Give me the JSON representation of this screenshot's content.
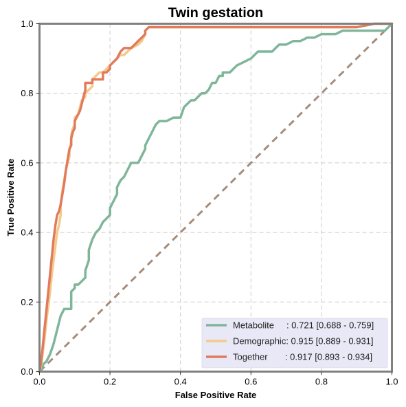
{
  "chart_data": {
    "type": "line",
    "title": "Twin gestation",
    "xlabel": "False Positive Rate",
    "ylabel": "True Positive Rate",
    "xlim": [
      0,
      1
    ],
    "ylim": [
      0,
      1
    ],
    "xticks": [
      "0.0",
      "0.2",
      "0.4",
      "0.6",
      "0.8",
      "1.0"
    ],
    "yticks": [
      "0.0",
      "0.2",
      "0.4",
      "0.6",
      "0.8",
      "1.0"
    ],
    "grid": true,
    "legend_position": "bottom-right",
    "diagonal": {
      "x": [
        0,
        1
      ],
      "y": [
        0,
        1
      ],
      "color": "#a58c7b",
      "style": "dashed"
    },
    "series": [
      {
        "name": "Metabolite",
        "legend": "Metabolite     : 0.721 [0.688 - 0.759]",
        "color": "#7fb69a",
        "points": [
          [
            0,
            0
          ],
          [
            0.005,
            0.005
          ],
          [
            0.01,
            0.02
          ],
          [
            0.02,
            0.03
          ],
          [
            0.03,
            0.05
          ],
          [
            0.04,
            0.08
          ],
          [
            0.05,
            0.12
          ],
          [
            0.06,
            0.16
          ],
          [
            0.07,
            0.18
          ],
          [
            0.08,
            0.18
          ],
          [
            0.09,
            0.18
          ],
          [
            0.09,
            0.2
          ],
          [
            0.09,
            0.23
          ],
          [
            0.1,
            0.24
          ],
          [
            0.1,
            0.25
          ],
          [
            0.11,
            0.25
          ],
          [
            0.12,
            0.26
          ],
          [
            0.13,
            0.27
          ],
          [
            0.13,
            0.29
          ],
          [
            0.14,
            0.32
          ],
          [
            0.14,
            0.35
          ],
          [
            0.15,
            0.38
          ],
          [
            0.16,
            0.4
          ],
          [
            0.17,
            0.41
          ],
          [
            0.18,
            0.43
          ],
          [
            0.19,
            0.44
          ],
          [
            0.2,
            0.45
          ],
          [
            0.2,
            0.47
          ],
          [
            0.21,
            0.49
          ],
          [
            0.22,
            0.51
          ],
          [
            0.22,
            0.53
          ],
          [
            0.23,
            0.55
          ],
          [
            0.24,
            0.56
          ],
          [
            0.25,
            0.58
          ],
          [
            0.26,
            0.6
          ],
          [
            0.27,
            0.6
          ],
          [
            0.28,
            0.6
          ],
          [
            0.29,
            0.62
          ],
          [
            0.3,
            0.64
          ],
          [
            0.3,
            0.65
          ],
          [
            0.31,
            0.67
          ],
          [
            0.32,
            0.69
          ],
          [
            0.33,
            0.71
          ],
          [
            0.34,
            0.72
          ],
          [
            0.36,
            0.72
          ],
          [
            0.38,
            0.73
          ],
          [
            0.4,
            0.73
          ],
          [
            0.41,
            0.76
          ],
          [
            0.42,
            0.77
          ],
          [
            0.43,
            0.78
          ],
          [
            0.44,
            0.78
          ],
          [
            0.45,
            0.79
          ],
          [
            0.46,
            0.8
          ],
          [
            0.47,
            0.8
          ],
          [
            0.48,
            0.81
          ],
          [
            0.49,
            0.83
          ],
          [
            0.5,
            0.83
          ],
          [
            0.51,
            0.85
          ],
          [
            0.52,
            0.85
          ],
          [
            0.52,
            0.86
          ],
          [
            0.54,
            0.86
          ],
          [
            0.55,
            0.87
          ],
          [
            0.56,
            0.88
          ],
          [
            0.58,
            0.89
          ],
          [
            0.6,
            0.9
          ],
          [
            0.61,
            0.91
          ],
          [
            0.62,
            0.92
          ],
          [
            0.64,
            0.92
          ],
          [
            0.66,
            0.92
          ],
          [
            0.67,
            0.93
          ],
          [
            0.68,
            0.94
          ],
          [
            0.7,
            0.94
          ],
          [
            0.72,
            0.95
          ],
          [
            0.74,
            0.95
          ],
          [
            0.76,
            0.96
          ],
          [
            0.78,
            0.96
          ],
          [
            0.8,
            0.97
          ],
          [
            0.82,
            0.97
          ],
          [
            0.84,
            0.97
          ],
          [
            0.86,
            0.98
          ],
          [
            0.9,
            0.98
          ],
          [
            0.95,
            0.98
          ],
          [
            0.98,
            0.98
          ],
          [
            0.99,
            0.99
          ],
          [
            1,
            1
          ]
        ]
      },
      {
        "name": "Demographic",
        "legend": "Demographic: 0.915 [0.889 - 0.931]",
        "color": "#f5ca8a",
        "points": [
          [
            0,
            0
          ],
          [
            0.005,
            0.02
          ],
          [
            0.01,
            0.06
          ],
          [
            0.015,
            0.1
          ],
          [
            0.02,
            0.15
          ],
          [
            0.025,
            0.19
          ],
          [
            0.03,
            0.23
          ],
          [
            0.035,
            0.28
          ],
          [
            0.04,
            0.32
          ],
          [
            0.045,
            0.36
          ],
          [
            0.05,
            0.4
          ],
          [
            0.055,
            0.42
          ],
          [
            0.06,
            0.45
          ],
          [
            0.06,
            0.48
          ],
          [
            0.065,
            0.52
          ],
          [
            0.07,
            0.55
          ],
          [
            0.075,
            0.58
          ],
          [
            0.08,
            0.6
          ],
          [
            0.085,
            0.62
          ],
          [
            0.085,
            0.64
          ],
          [
            0.09,
            0.66
          ],
          [
            0.09,
            0.68
          ],
          [
            0.095,
            0.7
          ],
          [
            0.1,
            0.71
          ],
          [
            0.1,
            0.73
          ],
          [
            0.11,
            0.74
          ],
          [
            0.115,
            0.76
          ],
          [
            0.12,
            0.78
          ],
          [
            0.13,
            0.79
          ],
          [
            0.13,
            0.8
          ],
          [
            0.14,
            0.81
          ],
          [
            0.15,
            0.82
          ],
          [
            0.15,
            0.84
          ],
          [
            0.16,
            0.85
          ],
          [
            0.17,
            0.86
          ],
          [
            0.18,
            0.86
          ],
          [
            0.19,
            0.87
          ],
          [
            0.2,
            0.88
          ],
          [
            0.21,
            0.89
          ],
          [
            0.22,
            0.9
          ],
          [
            0.23,
            0.91
          ],
          [
            0.24,
            0.91
          ],
          [
            0.25,
            0.92
          ],
          [
            0.26,
            0.93
          ],
          [
            0.28,
            0.94
          ],
          [
            0.29,
            0.95
          ],
          [
            0.3,
            0.97
          ],
          [
            0.3,
            0.98
          ],
          [
            0.31,
            0.99
          ],
          [
            0.5,
            0.99
          ],
          [
            0.7,
            0.99
          ],
          [
            0.85,
            0.99
          ],
          [
            0.9,
            0.99
          ],
          [
            0.95,
            1
          ],
          [
            1,
            1
          ]
        ]
      },
      {
        "name": "Together",
        "legend": "Together       : 0.917 [0.893 - 0.934]",
        "color": "#e07b5d",
        "points": [
          [
            0,
            0
          ],
          [
            0.005,
            0.03
          ],
          [
            0.01,
            0.08
          ],
          [
            0.015,
            0.13
          ],
          [
            0.02,
            0.18
          ],
          [
            0.025,
            0.23
          ],
          [
            0.03,
            0.28
          ],
          [
            0.035,
            0.33
          ],
          [
            0.04,
            0.38
          ],
          [
            0.045,
            0.42
          ],
          [
            0.05,
            0.45
          ],
          [
            0.055,
            0.46
          ],
          [
            0.06,
            0.48
          ],
          [
            0.065,
            0.51
          ],
          [
            0.07,
            0.54
          ],
          [
            0.075,
            0.58
          ],
          [
            0.08,
            0.61
          ],
          [
            0.085,
            0.64
          ],
          [
            0.09,
            0.65
          ],
          [
            0.09,
            0.67
          ],
          [
            0.095,
            0.69
          ],
          [
            0.1,
            0.7
          ],
          [
            0.1,
            0.72
          ],
          [
            0.105,
            0.73
          ],
          [
            0.11,
            0.74
          ],
          [
            0.115,
            0.75
          ],
          [
            0.12,
            0.77
          ],
          [
            0.125,
            0.79
          ],
          [
            0.13,
            0.81
          ],
          [
            0.13,
            0.83
          ],
          [
            0.14,
            0.83
          ],
          [
            0.15,
            0.83
          ],
          [
            0.15,
            0.84
          ],
          [
            0.16,
            0.84
          ],
          [
            0.18,
            0.84
          ],
          [
            0.18,
            0.86
          ],
          [
            0.19,
            0.86
          ],
          [
            0.2,
            0.87
          ],
          [
            0.2,
            0.88
          ],
          [
            0.21,
            0.89
          ],
          [
            0.22,
            0.9
          ],
          [
            0.23,
            0.92
          ],
          [
            0.24,
            0.93
          ],
          [
            0.26,
            0.93
          ],
          [
            0.27,
            0.94
          ],
          [
            0.28,
            0.95
          ],
          [
            0.29,
            0.96
          ],
          [
            0.3,
            0.97
          ],
          [
            0.3,
            0.98
          ],
          [
            0.31,
            0.99
          ],
          [
            0.5,
            0.99
          ],
          [
            0.7,
            0.99
          ],
          [
            0.85,
            0.99
          ],
          [
            0.9,
            0.99
          ],
          [
            0.95,
            1
          ],
          [
            1,
            1
          ]
        ]
      }
    ]
  }
}
